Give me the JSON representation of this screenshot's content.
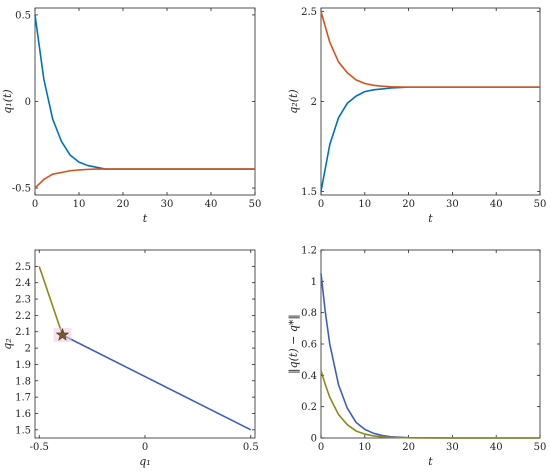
{
  "chart_data": [
    {
      "type": "line",
      "xlabel": "t",
      "ylabel": "q₁(t)",
      "xlim": [
        0,
        50
      ],
      "ylim": [
        -0.54,
        0.54
      ],
      "xticks": [
        0,
        10,
        20,
        30,
        40,
        50
      ],
      "xtick_labels": [
        "0",
        "10",
        "20",
        "30",
        "40",
        "50"
      ],
      "yticks": [
        -0.5,
        0,
        0.5
      ],
      "ytick_labels": [
        "-0.5",
        "0",
        "0.5"
      ],
      "grid": false,
      "series": [
        {
          "color": "#0072BD",
          "x": [
            0,
            2,
            4,
            6,
            8,
            10,
            12,
            14,
            16,
            20,
            30,
            40,
            50
          ],
          "values": [
            0.5,
            0.13,
            -0.1,
            -0.23,
            -0.31,
            -0.35,
            -0.37,
            -0.38,
            -0.39,
            -0.39,
            -0.39,
            -0.39,
            -0.39
          ]
        },
        {
          "color": "#D95319",
          "x": [
            0,
            2,
            4,
            6,
            8,
            10,
            12,
            14,
            16,
            20,
            30,
            40,
            50
          ],
          "values": [
            -0.5,
            -0.45,
            -0.42,
            -0.41,
            -0.4,
            -0.395,
            -0.392,
            -0.39,
            -0.39,
            -0.39,
            -0.39,
            -0.39,
            -0.39
          ]
        }
      ]
    },
    {
      "type": "line",
      "xlabel": "t",
      "ylabel": "q₂(t)",
      "xlim": [
        0,
        50
      ],
      "ylim": [
        1.48,
        2.52
      ],
      "xticks": [
        0,
        10,
        20,
        30,
        40,
        50
      ],
      "xtick_labels": [
        "0",
        "10",
        "20",
        "30",
        "40",
        "50"
      ],
      "yticks": [
        1.5,
        2,
        2.5
      ],
      "ytick_labels": [
        "1.5",
        "2",
        "2.5"
      ],
      "grid": false,
      "series": [
        {
          "color": "#0072BD",
          "x": [
            0,
            2,
            4,
            6,
            8,
            10,
            12,
            14,
            16,
            20,
            30,
            40,
            50
          ],
          "values": [
            1.5,
            1.76,
            1.91,
            1.99,
            2.03,
            2.055,
            2.065,
            2.07,
            2.075,
            2.08,
            2.08,
            2.08,
            2.08
          ]
        },
        {
          "color": "#D95319",
          "x": [
            0,
            2,
            4,
            6,
            8,
            10,
            12,
            14,
            16,
            20,
            30,
            40,
            50
          ],
          "values": [
            2.5,
            2.33,
            2.22,
            2.16,
            2.12,
            2.1,
            2.09,
            2.085,
            2.082,
            2.08,
            2.08,
            2.08,
            2.08
          ]
        }
      ]
    },
    {
      "type": "line",
      "xlabel": "q₁",
      "ylabel": "q₂",
      "xlim": [
        -0.52,
        0.52
      ],
      "ylim": [
        1.45,
        2.6
      ],
      "xticks": [
        -0.5,
        0,
        0.5
      ],
      "xtick_labels": [
        "-0.5",
        "0",
        "0.5"
      ],
      "yticks": [
        1.5,
        1.6,
        1.7,
        1.8,
        1.9,
        2,
        2.1,
        2.2,
        2.3,
        2.4,
        2.5
      ],
      "ytick_labels": [
        "1.5",
        "1.6",
        "1.7",
        "1.8",
        "1.9",
        "2",
        "2.1",
        "2.2",
        "2.3",
        "2.4",
        "2.5"
      ],
      "grid": false,
      "series": [
        {
          "color": "#3D5FBF",
          "x": [
            0.5,
            -0.39
          ],
          "values": [
            1.5,
            2.08
          ]
        },
        {
          "color": "#8C8A1A",
          "x": [
            -0.5,
            -0.39
          ],
          "values": [
            2.5,
            2.08
          ]
        }
      ],
      "marker": {
        "shape": "star",
        "x": -0.39,
        "y": 2.08,
        "color": "#7A5A1E"
      }
    },
    {
      "type": "line",
      "xlabel": "t",
      "ylabel": "‖q(t) − q*‖",
      "xlim": [
        0,
        50
      ],
      "ylim": [
        0,
        1.2
      ],
      "xticks": [
        0,
        10,
        20,
        30,
        40,
        50
      ],
      "xtick_labels": [
        "0",
        "10",
        "20",
        "30",
        "40",
        "50"
      ],
      "yticks": [
        0,
        0.2,
        0.4,
        0.6,
        0.8,
        1,
        1.2
      ],
      "ytick_labels": [
        "0",
        "0.2",
        "0.4",
        "0.6",
        "0.8",
        "1",
        "1.2"
      ],
      "grid": false,
      "series": [
        {
          "color": "#3D5FBF",
          "x": [
            0,
            1,
            2,
            4,
            6,
            8,
            10,
            12,
            14,
            16,
            20,
            30,
            40,
            50
          ],
          "values": [
            1.05,
            0.8,
            0.6,
            0.34,
            0.19,
            0.1,
            0.055,
            0.03,
            0.016,
            0.008,
            0.002,
            0,
            0,
            0
          ]
        },
        {
          "color": "#8C8A1A",
          "x": [
            0,
            1,
            2,
            4,
            6,
            8,
            10,
            12,
            14,
            16,
            20,
            30,
            40,
            50
          ],
          "values": [
            0.43,
            0.34,
            0.26,
            0.15,
            0.085,
            0.045,
            0.025,
            0.013,
            0.007,
            0.004,
            0.001,
            0,
            0,
            0
          ]
        }
      ]
    }
  ]
}
